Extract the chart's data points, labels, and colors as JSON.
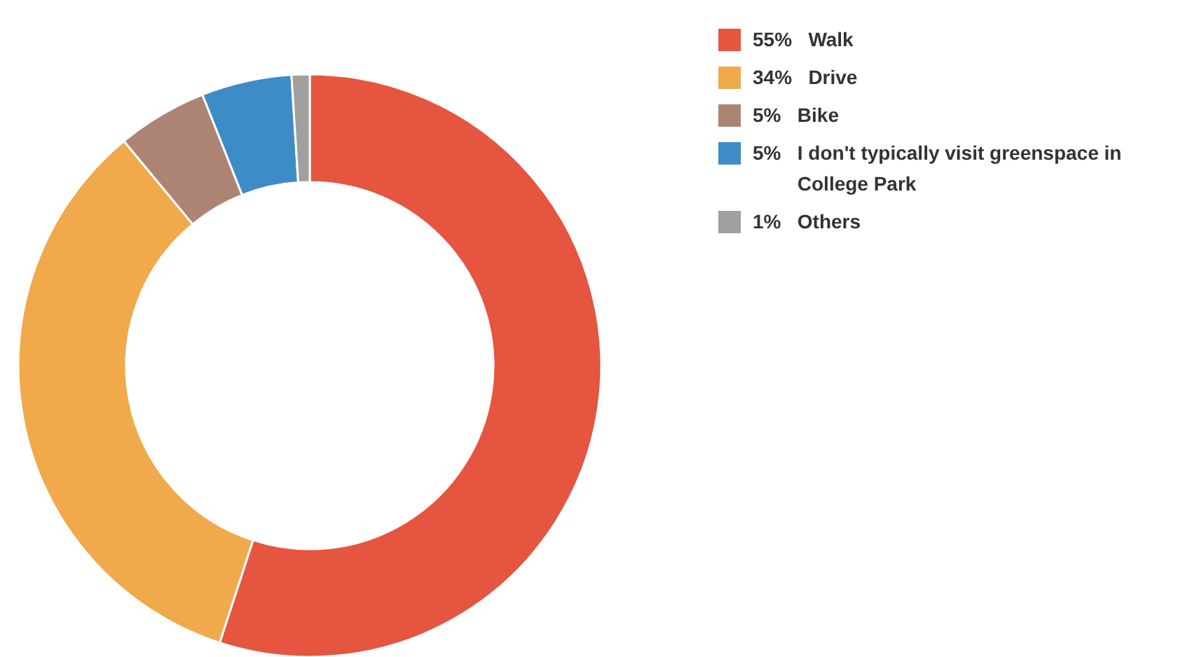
{
  "chart_data": {
    "type": "donut",
    "categories": [
      "Walk",
      "Drive",
      "Bike",
      "I don't typically visit greenspace in College Park",
      "Others"
    ],
    "values": [
      55,
      34,
      5,
      5,
      1
    ],
    "colors": [
      "#e5553f",
      "#f0a94b",
      "#ad8474",
      "#3d8cc7",
      "#a0a0a0"
    ],
    "value_labels": [
      "55%",
      "34%",
      "5%",
      "5%",
      "1%"
    ],
    "legend": "top right"
  }
}
